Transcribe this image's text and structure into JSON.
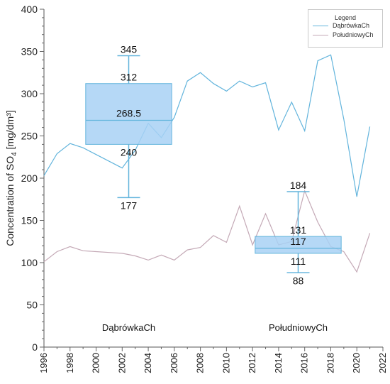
{
  "chart_data": {
    "type": "line",
    "title": "",
    "xlabel": "",
    "ylabel_main": "Concentration of SO",
    "ylabel_sub": "4",
    "ylabel_tail": " [mg/dm³]",
    "xlim": [
      1996,
      2022
    ],
    "ylim": [
      0,
      400
    ],
    "x_ticks": [
      1996,
      1998,
      2000,
      2002,
      2004,
      2006,
      2008,
      2010,
      2012,
      2014,
      2016,
      2018,
      2020,
      2022
    ],
    "y_ticks": [
      0,
      50,
      100,
      150,
      200,
      250,
      300,
      350,
      400
    ],
    "legend": {
      "title": "Legend",
      "position": "top-right"
    },
    "series": [
      {
        "name": "DąbrówkaCh",
        "color": "#62b4dc",
        "x": [
          1996,
          1997,
          1998,
          1999,
          2000,
          2001,
          2002,
          2003,
          2004,
          2005,
          2006,
          2007,
          2008,
          2009,
          2010,
          2011,
          2012,
          2013,
          2014,
          2015,
          2016,
          2017,
          2018,
          2019,
          2020,
          2021
        ],
        "y": [
          203,
          229,
          241,
          236,
          228,
          220,
          212,
          233,
          265,
          248,
          272,
          315,
          325,
          312,
          303,
          315,
          308,
          313,
          257,
          290,
          256,
          339,
          346,
          270,
          178,
          261
        ]
      },
      {
        "name": "PołudniowyCh",
        "color": "#c4a9b6",
        "x": [
          1996,
          1997,
          1998,
          1999,
          2000,
          2001,
          2002,
          2003,
          2004,
          2005,
          2006,
          2007,
          2008,
          2009,
          2010,
          2011,
          2012,
          2013,
          2014,
          2015,
          2016,
          2017,
          2018,
          2019,
          2020,
          2021
        ],
        "y": [
          101,
          113,
          119,
          114,
          113,
          112,
          111,
          108,
          103,
          109,
          103,
          115,
          118,
          132,
          124,
          167,
          121,
          158,
          121,
          125,
          185,
          148,
          119,
          113,
          89,
          135
        ]
      }
    ],
    "boxplots": [
      {
        "label": "DąbrówkaCh",
        "x_from": 1999.2,
        "x_to": 2005.8,
        "min": 177,
        "q1": 240,
        "median": 268.5,
        "q3": 312,
        "max": 345,
        "labels": {
          "max": "345",
          "q3": "312",
          "median": "268.5",
          "q1": "240",
          "min": "177"
        }
      },
      {
        "label": "PołudniowyCh",
        "x_from": 2012.2,
        "x_to": 2018.8,
        "min": 88,
        "q1": 111,
        "median": 117,
        "q3": 131,
        "max": 184,
        "labels": {
          "max": "184",
          "q3": "131",
          "median": "117",
          "q1": "111",
          "min": "88"
        }
      }
    ],
    "box_fill": "#a8d1f4",
    "box_stroke": "#62b4dc"
  }
}
